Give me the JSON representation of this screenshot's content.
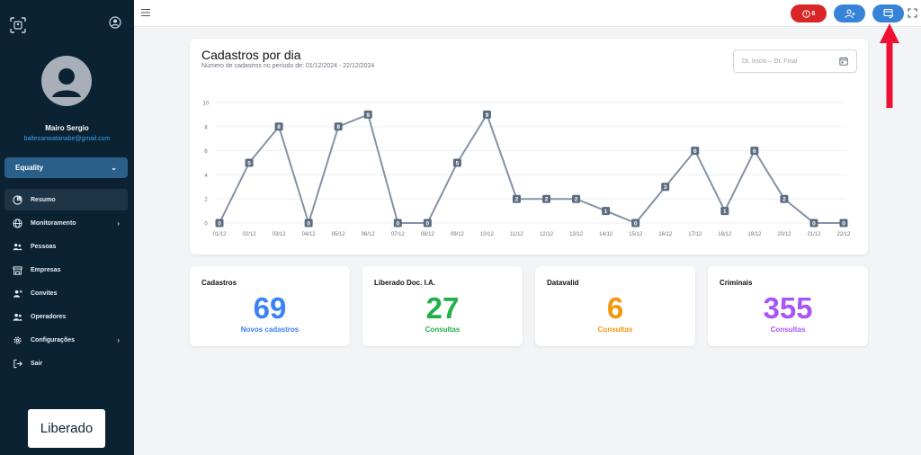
{
  "sidebar": {
    "user_name": "Mairo Sergio",
    "user_email": "baltezanwatanabe@gmail.com",
    "company": "Equality",
    "items": [
      {
        "label": "Resumo",
        "icon": "pie-chart-icon",
        "active": true
      },
      {
        "label": "Monitoramento",
        "icon": "globe-icon",
        "has_submenu": true
      },
      {
        "label": "Pessoas",
        "icon": "people-icon"
      },
      {
        "label": "Empresas",
        "icon": "store-icon"
      },
      {
        "label": "Convites",
        "icon": "user-plus-icon"
      },
      {
        "label": "Operadores",
        "icon": "operators-icon"
      },
      {
        "label": "Configurações",
        "icon": "gear-icon",
        "has_submenu": true
      },
      {
        "label": "Sair",
        "icon": "logout-icon"
      }
    ],
    "brand": "Liberado"
  },
  "topbar": {
    "alert_count": "6",
    "colors": {
      "alert": "#d92626",
      "action": "#3683d8"
    }
  },
  "chart_card": {
    "title": "Cadastros por dia",
    "subtitle": "Número de cadastros no período de: 01/12/2024 - 22/12/2024",
    "date_placeholder": "Dt. Início – Dt. Final"
  },
  "chart_data": {
    "type": "line",
    "categories": [
      "01/12",
      "02/12",
      "03/12",
      "04/12",
      "05/12",
      "06/12",
      "07/12",
      "08/12",
      "09/12",
      "10/12",
      "11/12",
      "12/12",
      "13/12",
      "14/12",
      "15/12",
      "16/12",
      "17/12",
      "18/12",
      "19/12",
      "20/12",
      "21/12",
      "22/12"
    ],
    "values": [
      0,
      5,
      8,
      0,
      8,
      9,
      0,
      0,
      5,
      9,
      2,
      2,
      2,
      1,
      0,
      3,
      6,
      1,
      6,
      2,
      0,
      0
    ],
    "yticks": [
      0,
      2,
      4,
      6,
      8,
      10
    ],
    "ylim": [
      0,
      10
    ],
    "grid": true,
    "color": "#8492a6"
  },
  "stats": [
    {
      "label": "Cadastros",
      "value": "69",
      "sub": "Novos cadastros",
      "color": "#3b82f6"
    },
    {
      "label": "Liberado Doc. I.A.",
      "value": "27",
      "sub": "Consultas",
      "color": "#22b04b"
    },
    {
      "label": "Datavalid",
      "value": "6",
      "sub": "Consultas",
      "color": "#f2960e"
    },
    {
      "label": "Criminais",
      "value": "355",
      "sub": "Consultas",
      "color": "#a855f7"
    }
  ]
}
